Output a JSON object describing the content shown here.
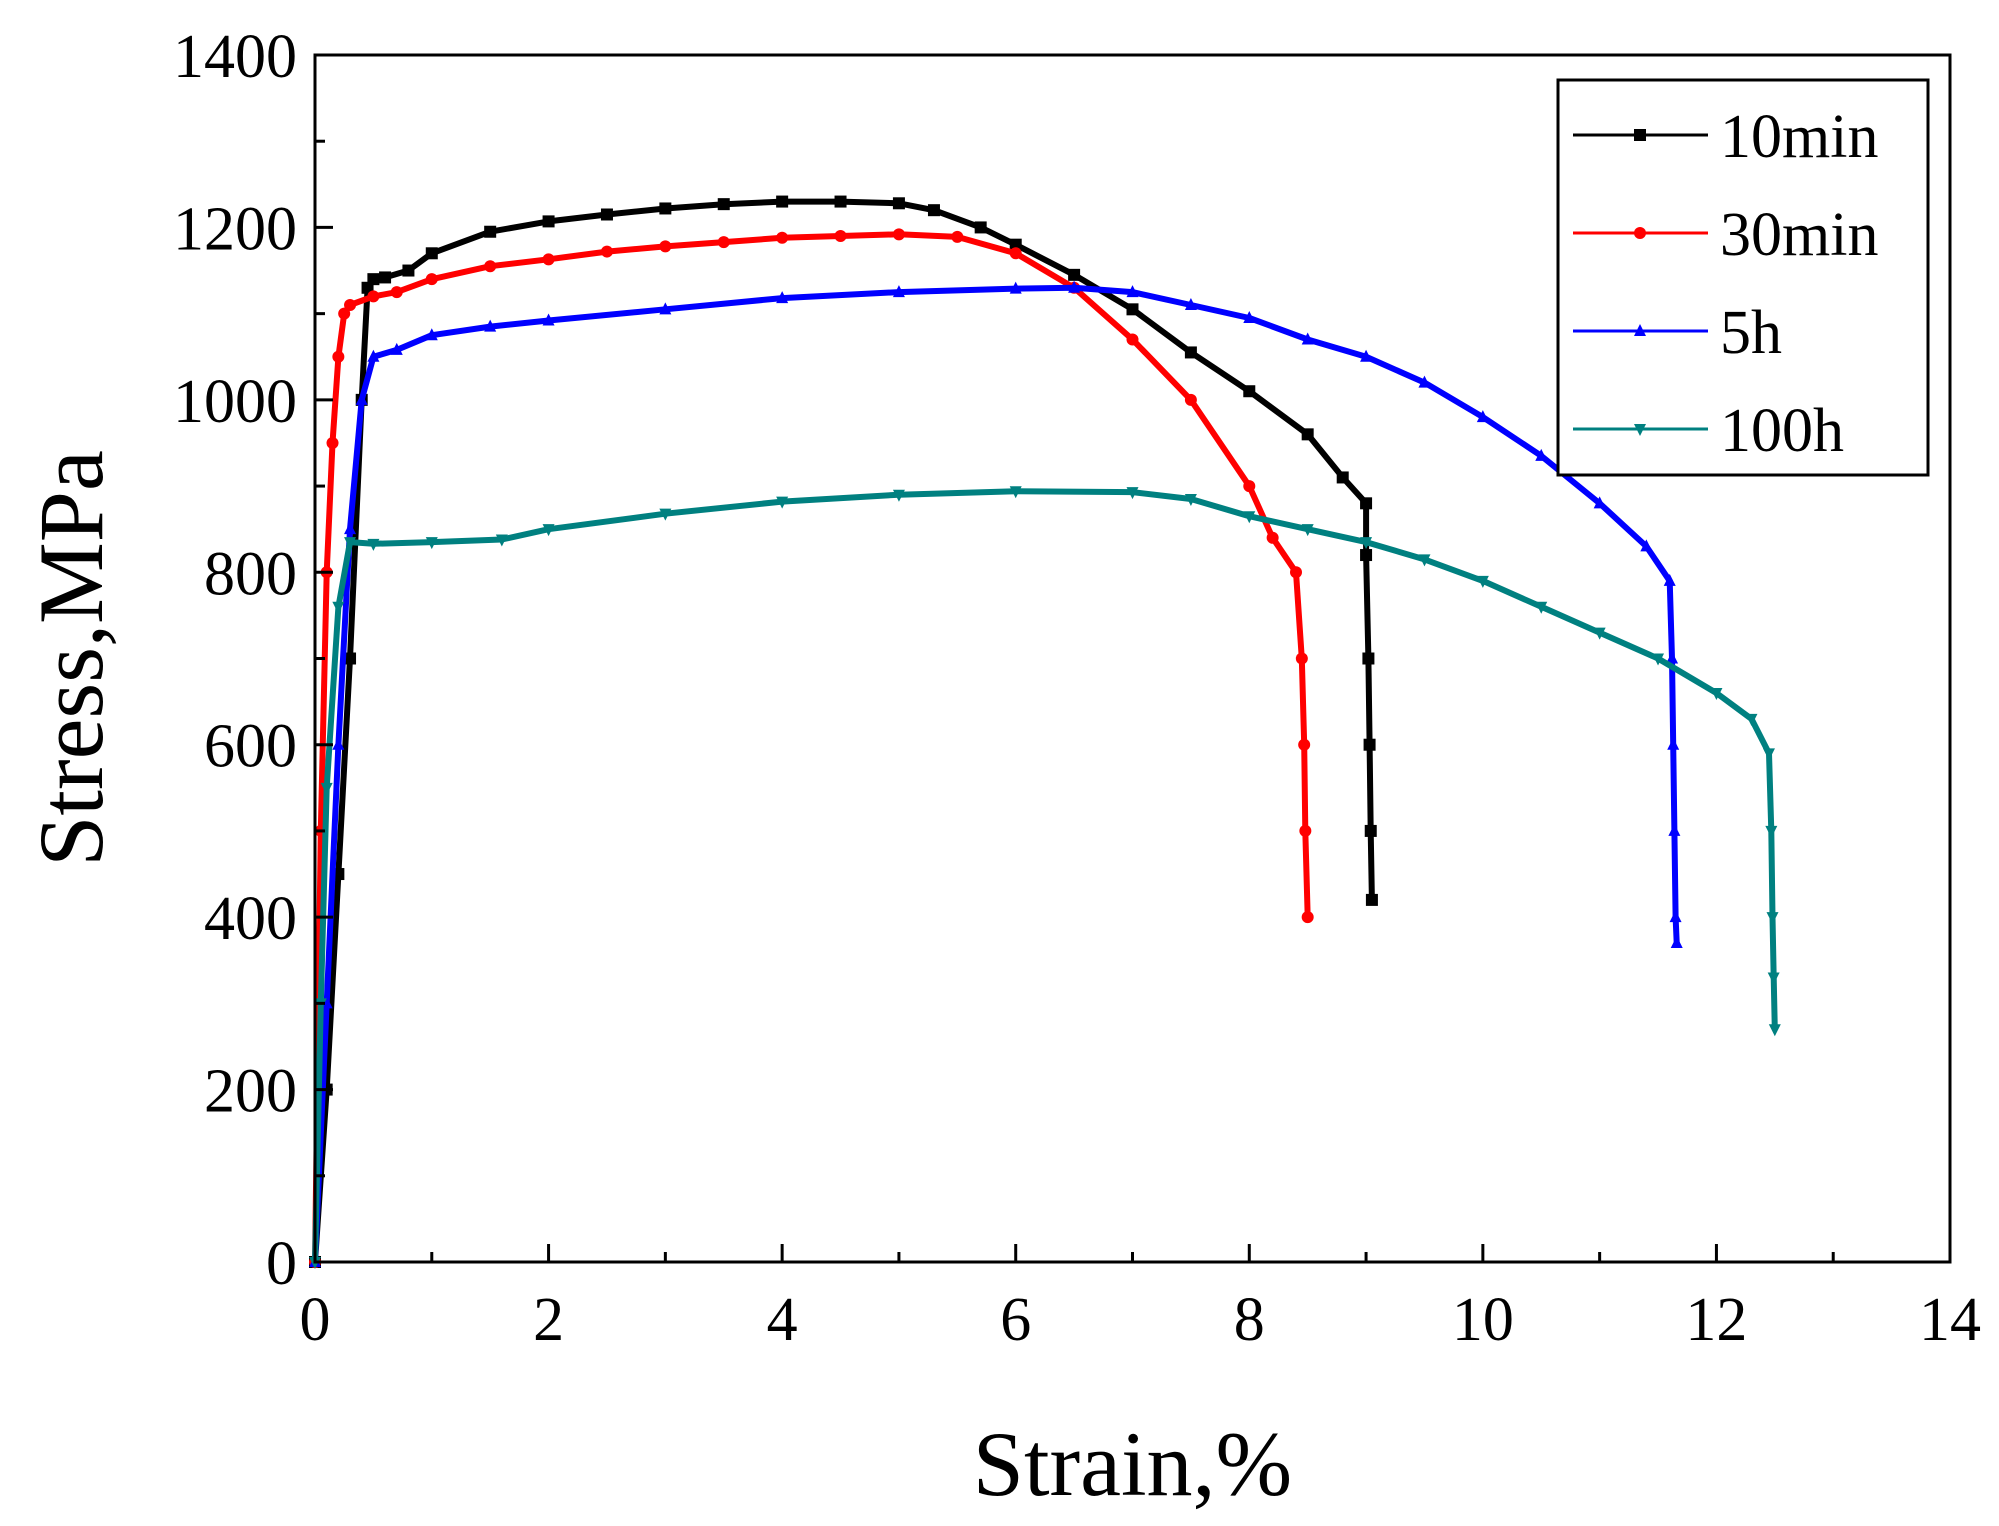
{
  "chart_data": {
    "type": "line",
    "title": "",
    "xlabel": "Strain,%",
    "ylabel": "Stress,MPa",
    "xlim": [
      0,
      14
    ],
    "ylim": [
      0,
      1400
    ],
    "xticks": [
      0,
      2,
      4,
      6,
      8,
      10,
      12,
      14
    ],
    "xtick_labels": [
      "0",
      "2",
      "4",
      "6",
      "8",
      "10",
      "12",
      "14"
    ],
    "yticks": [
      0,
      200,
      400,
      600,
      800,
      1000,
      1200,
      1400
    ],
    "ytick_labels": [
      "0",
      "200",
      "400",
      "600",
      "800",
      "1000",
      "1200",
      "1400"
    ],
    "grid": false,
    "legend_position": "top-right",
    "series": [
      {
        "name": "10min",
        "color": "#000000",
        "marker": "square",
        "points": [
          [
            0,
            0
          ],
          [
            0.1,
            200
          ],
          [
            0.2,
            450
          ],
          [
            0.3,
            700
          ],
          [
            0.4,
            1000
          ],
          [
            0.45,
            1130
          ],
          [
            0.5,
            1140
          ],
          [
            0.6,
            1142
          ],
          [
            0.8,
            1150
          ],
          [
            1.0,
            1170
          ],
          [
            1.5,
            1195
          ],
          [
            2,
            1207
          ],
          [
            2.5,
            1215
          ],
          [
            3,
            1222
          ],
          [
            3.5,
            1227
          ],
          [
            4,
            1230
          ],
          [
            4.5,
            1230
          ],
          [
            5,
            1228
          ],
          [
            5.3,
            1220
          ],
          [
            5.7,
            1200
          ],
          [
            6,
            1180
          ],
          [
            6.5,
            1145
          ],
          [
            7,
            1105
          ],
          [
            7.5,
            1055
          ],
          [
            8,
            1010
          ],
          [
            8.5,
            960
          ],
          [
            8.8,
            910
          ],
          [
            9.0,
            880
          ],
          [
            9.0,
            820
          ],
          [
            9.02,
            700
          ],
          [
            9.03,
            600
          ],
          [
            9.04,
            500
          ],
          [
            9.05,
            420
          ]
        ]
      },
      {
        "name": "30min",
        "color": "#ff0000",
        "marker": "circle",
        "points": [
          [
            0,
            0
          ],
          [
            0.05,
            500
          ],
          [
            0.1,
            800
          ],
          [
            0.15,
            950
          ],
          [
            0.2,
            1050
          ],
          [
            0.25,
            1100
          ],
          [
            0.3,
            1110
          ],
          [
            0.5,
            1120
          ],
          [
            0.7,
            1125
          ],
          [
            1,
            1140
          ],
          [
            1.5,
            1155
          ],
          [
            2,
            1163
          ],
          [
            2.5,
            1172
          ],
          [
            3,
            1178
          ],
          [
            3.5,
            1183
          ],
          [
            4,
            1188
          ],
          [
            4.5,
            1190
          ],
          [
            5,
            1192
          ],
          [
            5.5,
            1189
          ],
          [
            6,
            1170
          ],
          [
            6.5,
            1130
          ],
          [
            7,
            1070
          ],
          [
            7.5,
            1000
          ],
          [
            8,
            900
          ],
          [
            8.2,
            840
          ],
          [
            8.4,
            800
          ],
          [
            8.45,
            700
          ],
          [
            8.47,
            600
          ],
          [
            8.48,
            500
          ],
          [
            8.5,
            400
          ]
        ]
      },
      {
        "name": "5h",
        "color": "#0000ff",
        "marker": "triangle-up",
        "points": [
          [
            0,
            0
          ],
          [
            0.1,
            300
          ],
          [
            0.2,
            600
          ],
          [
            0.3,
            850
          ],
          [
            0.4,
            1000
          ],
          [
            0.5,
            1050
          ],
          [
            0.7,
            1058
          ],
          [
            1,
            1075
          ],
          [
            1.5,
            1085
          ],
          [
            2,
            1092
          ],
          [
            3,
            1105
          ],
          [
            4,
            1118
          ],
          [
            5,
            1125
          ],
          [
            6,
            1129
          ],
          [
            6.5,
            1130
          ],
          [
            7,
            1125
          ],
          [
            7.5,
            1110
          ],
          [
            8,
            1095
          ],
          [
            8.5,
            1070
          ],
          [
            9,
            1050
          ],
          [
            9.5,
            1020
          ],
          [
            10,
            980
          ],
          [
            10.5,
            935
          ],
          [
            11,
            880
          ],
          [
            11.4,
            830
          ],
          [
            11.6,
            790
          ],
          [
            11.62,
            700
          ],
          [
            11.63,
            600
          ],
          [
            11.64,
            500
          ],
          [
            11.65,
            400
          ],
          [
            11.66,
            370
          ]
        ]
      },
      {
        "name": "100h",
        "color": "#008080",
        "marker": "triangle-down",
        "points": [
          [
            0,
            0
          ],
          [
            0.05,
            300
          ],
          [
            0.1,
            550
          ],
          [
            0.2,
            760
          ],
          [
            0.3,
            835
          ],
          [
            0.5,
            833
          ],
          [
            1,
            835
          ],
          [
            1.6,
            838
          ],
          [
            2,
            850
          ],
          [
            3,
            868
          ],
          [
            4,
            882
          ],
          [
            5,
            890
          ],
          [
            6,
            894
          ],
          [
            7,
            893
          ],
          [
            7.5,
            885
          ],
          [
            8,
            865
          ],
          [
            8.5,
            850
          ],
          [
            9,
            835
          ],
          [
            9.5,
            815
          ],
          [
            10,
            790
          ],
          [
            10.5,
            760
          ],
          [
            11,
            730
          ],
          [
            11.5,
            700
          ],
          [
            12,
            660
          ],
          [
            12.3,
            630
          ],
          [
            12.45,
            590
          ],
          [
            12.47,
            500
          ],
          [
            12.48,
            400
          ],
          [
            12.49,
            330
          ],
          [
            12.5,
            270
          ]
        ]
      }
    ]
  }
}
